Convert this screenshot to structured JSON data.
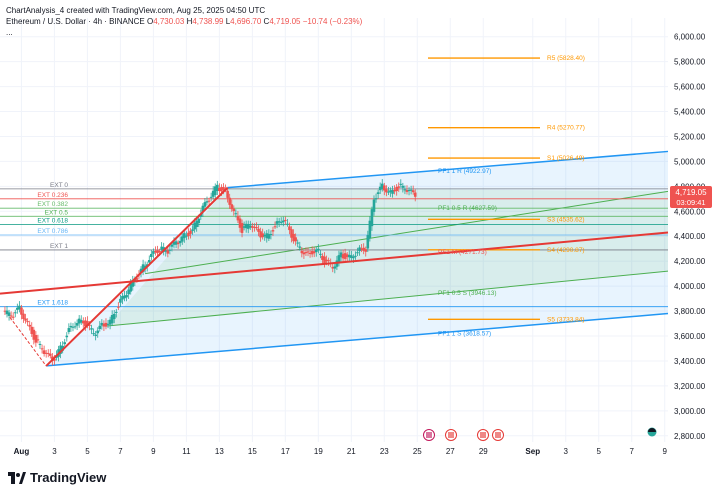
{
  "header": {
    "line1": "ChartAnalysis_4 created with TradingView.com, Aug 25, 2025 04:50 UTC",
    "symbol": "Ethereum / U.S. Dollar · 4h · BINANCE",
    "open_label": "O",
    "open": "4,730.03",
    "high_label": "H",
    "high": "4,738.99",
    "low_label": "L",
    "low": "4,696.70",
    "close_label": "C",
    "close": "4,719.05",
    "change": "−10.74 (−0.23%)",
    "more": "..."
  },
  "brand": {
    "name": "TradingView"
  },
  "price_tag": {
    "price": "4,719.05",
    "countdown": "03:09:41"
  },
  "colors": {
    "up": "#26a69a",
    "down": "#ef5350",
    "channel": "#2196f3",
    "fib": "#4caf50",
    "pivot": "#ff9800",
    "trend": "#e53935"
  },
  "chart_data": {
    "type": "candlestick",
    "y_ticks": [
      "6,000.00",
      "5,800.00",
      "5,600.00",
      "5,400.00",
      "5,200.00",
      "5,000.00",
      "4,800.00",
      "4,600.00",
      "4,400.00",
      "4,200.00",
      "4,000.00",
      "3,800.00",
      "3,600.00",
      "3,400.00",
      "3,200.00",
      "3,000.00",
      "2,800.00"
    ],
    "y_tick_values": [
      6000,
      5800,
      5600,
      5400,
      5200,
      5000,
      4800,
      4600,
      4400,
      4200,
      4000,
      3800,
      3600,
      3400,
      3200,
      3000,
      2800
    ],
    "ylim": [
      2750,
      6150
    ],
    "x_ticks": [
      "Aug",
      "3",
      "5",
      "7",
      "9",
      "11",
      "13",
      "15",
      "17",
      "19",
      "21",
      "23",
      "25",
      "27",
      "29",
      "Sep",
      "3",
      "5",
      "7",
      "9"
    ],
    "x_tick_days": [
      1,
      3,
      5,
      7,
      9,
      11,
      13,
      15,
      17,
      19,
      21,
      23,
      25,
      27,
      29,
      32,
      34,
      36,
      38,
      40
    ],
    "xlim": [
      -0.3,
      40.2
    ],
    "series_ohlc_days": [
      0.0,
      0.5,
      1.0,
      1.5,
      2.0,
      2.5,
      3.0,
      3.5,
      4.0,
      4.5,
      5.0,
      5.5,
      6.0,
      6.5,
      7.0,
      7.5,
      8.0,
      8.5,
      9.0,
      9.5,
      10.0,
      10.5,
      11.0,
      11.5,
      12.0,
      12.5,
      13.0,
      13.5,
      14.0,
      14.5,
      15.0,
      15.5,
      16.0,
      16.5,
      17.0,
      17.5,
      18.0,
      18.5,
      19.0,
      19.5,
      20.0,
      20.5,
      21.0,
      21.5,
      22.0,
      22.5,
      23.0,
      23.5,
      24.0,
      24.5,
      25.0
    ],
    "series_close": [
      3800,
      3760,
      3820,
      3700,
      3560,
      3480,
      3400,
      3500,
      3650,
      3720,
      3700,
      3620,
      3680,
      3720,
      3850,
      3950,
      4050,
      4150,
      4250,
      4300,
      4280,
      4350,
      4400,
      4450,
      4600,
      4700,
      4800,
      4750,
      4600,
      4450,
      4500,
      4420,
      4400,
      4480,
      4550,
      4400,
      4300,
      4250,
      4300,
      4200,
      4150,
      4250,
      4230,
      4280,
      4300,
      4700,
      4800,
      4750,
      4800,
      4780,
      4719
    ],
    "levels": [
      {
        "name": "EXT 0",
        "value": 4780,
        "kind": "ext",
        "color": "#787b86"
      },
      {
        "name": "EXT 0.236",
        "value": 4700,
        "kind": "ext",
        "color": "#ef5350"
      },
      {
        "name": "EXT 0.382",
        "value": 4625,
        "kind": "ext",
        "color": "#66bb6a"
      },
      {
        "name": "EXT 0.5",
        "value": 4560,
        "kind": "ext",
        "color": "#4caf50"
      },
      {
        "name": "EXT 0.618",
        "value": 4495,
        "kind": "ext",
        "color": "#089981"
      },
      {
        "name": "EXT 0.786",
        "value": 4410,
        "kind": "ext",
        "color": "#64b5f6"
      },
      {
        "name": "EXT 1",
        "value": 4290,
        "kind": "ext",
        "color": "#787b86"
      },
      {
        "name": "EXT 1.618",
        "value": 3835,
        "kind": "ext",
        "color": "#2196f3"
      }
    ],
    "pivots": [
      {
        "name": "R5 (5828.40)",
        "value": 5828.4,
        "color": "#ff9800"
      },
      {
        "name": "R4 (5270.77)",
        "value": 5270.77,
        "color": "#ff9800"
      },
      {
        "name": "S1 (5026.49)",
        "value": 5026.49,
        "color": "#ff9800"
      },
      {
        "name": "S3 (4535.62)",
        "value": 4535.62,
        "color": "#ff9800"
      },
      {
        "name": "S4 (4290.87)",
        "value": 4290.87,
        "color": "#ff9800"
      },
      {
        "name": "S5 (3733.84)",
        "value": 3733.84,
        "color": "#ff9800"
      }
    ],
    "pitchfork": [
      {
        "name": "PF1 1 R (4922.97)",
        "value": 4922.97,
        "color": "#2196f3"
      },
      {
        "name": "PF1 0.5 R (4627.59)",
        "value": 4627.59,
        "color": "#4caf50"
      },
      {
        "name": "PF1 M (4271.73)",
        "value": 4271.73,
        "color": "#ef5350"
      },
      {
        "name": "PF1 0.5 S (3946.13)",
        "value": 3946.13,
        "color": "#4caf50"
      },
      {
        "name": "PF1 1 S (3618.57)",
        "value": 3618.57,
        "color": "#2196f3"
      }
    ]
  }
}
